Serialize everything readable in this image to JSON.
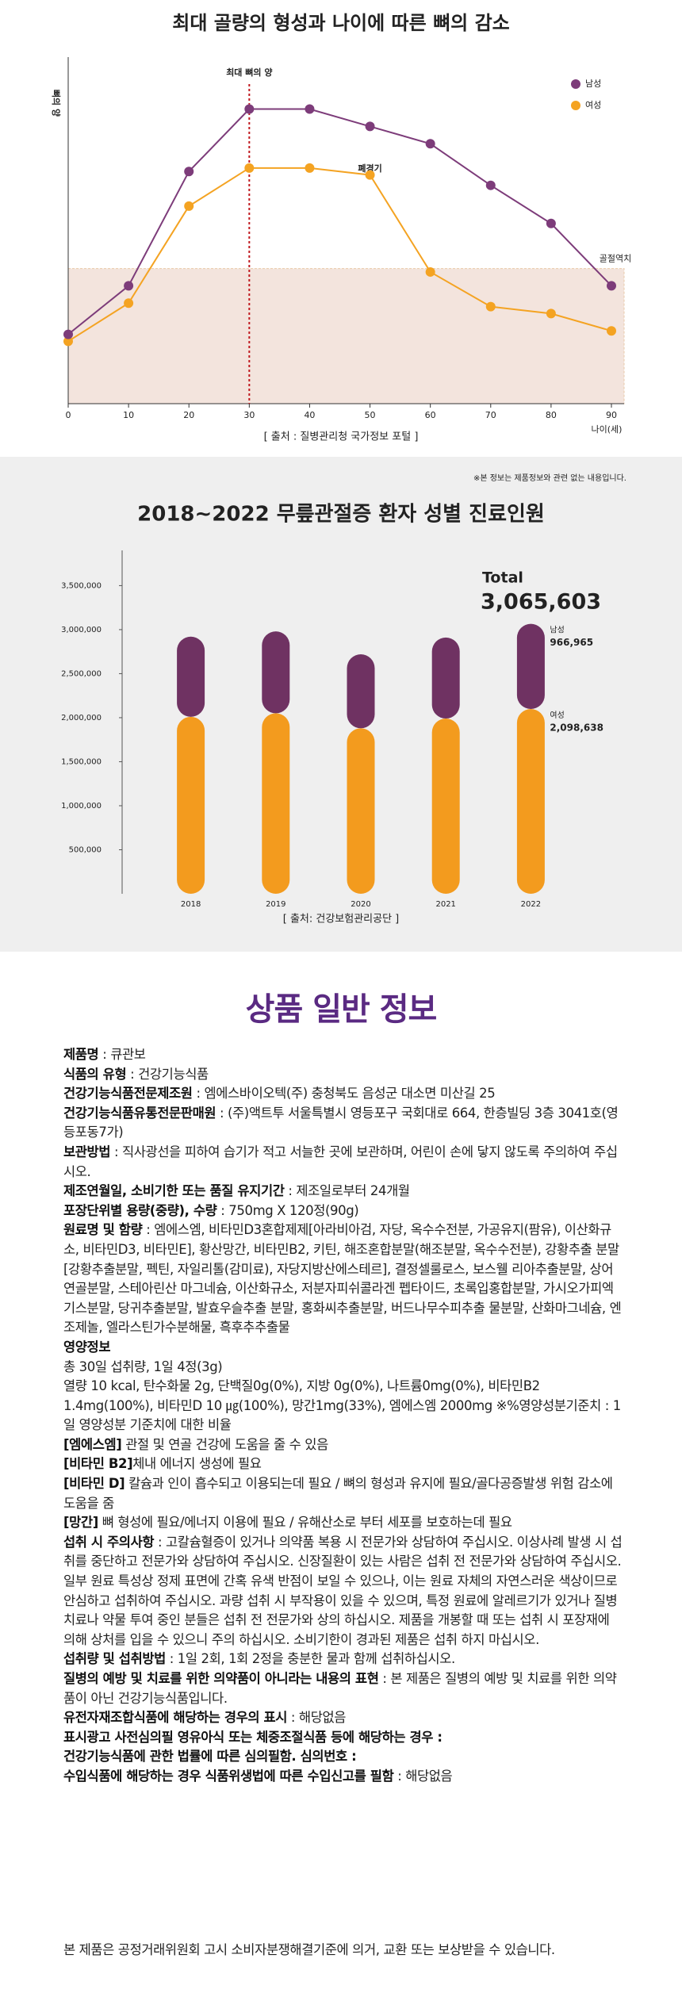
{
  "chart_data": [
    {
      "type": "line",
      "title": "최대 골량의 형성과 나이에 따른 뼈의 감소",
      "x": [
        0,
        10,
        20,
        30,
        40,
        50,
        60,
        70,
        80,
        90
      ],
      "xlim": [
        0,
        90
      ],
      "xticks": [
        0,
        10,
        20,
        30,
        40,
        50,
        60,
        70,
        80,
        90
      ],
      "ylim": [
        0,
        100
      ],
      "ylabel": "뼈의 양",
      "xlabel": "나이(세)",
      "legend": "top-right",
      "series": [
        {
          "name": "여성",
          "color": "#f4a322",
          "values": [
            18,
            29,
            57,
            68,
            68,
            66,
            38,
            28,
            26,
            21
          ]
        },
        {
          "name": "남성",
          "color": "#7d3c7a",
          "values": [
            20,
            34,
            67,
            85,
            85,
            80,
            75,
            63,
            52,
            34
          ]
        }
      ],
      "threshold": {
        "label": "골절역치",
        "value": 39
      },
      "peak_marker": {
        "label": "최대 뼈의 양",
        "x": 30
      },
      "menopause": {
        "label": "폐경기",
        "x": 50
      },
      "source": "[ 출처 : 질병관리청 국가정보 포털 ]"
    },
    {
      "type": "bar",
      "stacked": true,
      "note": "※본 정보는 제품정보와 관련 없는 내용입니다.",
      "title": "2018~2022 무릎관절증 환자 성별 진료인원",
      "categories": [
        "2018",
        "2019",
        "2020",
        "2021",
        "2022"
      ],
      "ylim": [
        0,
        3900000
      ],
      "yticks": [
        {
          "value": 500000,
          "label": "500,000"
        },
        {
          "value": 1000000,
          "label": "1,000,000"
        },
        {
          "value": 1500000,
          "label": "1,500,000"
        },
        {
          "value": 2000000,
          "label": "2,000,000"
        },
        {
          "value": 2500000,
          "label": "2,500,000"
        },
        {
          "value": 3000000,
          "label": "3,000,000"
        },
        {
          "value": 3500000,
          "label": "3,500,000"
        }
      ],
      "series": [
        {
          "name": "여성",
          "color": "#f39b1e",
          "values": [
            2010000,
            2050000,
            1880000,
            1990000,
            2098638
          ],
          "value_labels": [
            null,
            null,
            null,
            null,
            "2,098,638"
          ]
        },
        {
          "name": "남성",
          "color": "#6f3262",
          "values": [
            910000,
            930000,
            840000,
            920000,
            966965
          ],
          "value_labels": [
            null,
            null,
            null,
            null,
            "966,965"
          ]
        }
      ],
      "total_label": "Total",
      "total_value": "3,065,603",
      "source": "[ 출처: 건강보험관리공단 ]"
    }
  ],
  "document": {
    "title": "상품 일반 정보",
    "items": [
      {
        "label": "제품명",
        "text": " : 큐관보"
      },
      {
        "label": "식품의 유형",
        "text": " : 건강기능식품"
      },
      {
        "label": "건강기능식품전문제조원",
        "text": " : 엠에스바이오텍(주) 충청북도 음성군 대소면 미산길 25"
      },
      {
        "label": "건강기능식품유통전문판매원",
        "text": " : (주)액트투 서울특별시 영등포구 국회대로 664, 한층빌딩 3층 3041호(영등포동7가)"
      },
      {
        "label": "보관방법",
        "text": " : 직사광선을 피하여 습기가 적고 서늘한 곳에 보관하며, 어린이 손에 닿지 않도록 주의하여 주십시오."
      },
      {
        "label": "제조연월일, 소비기한 또는 품질 유지기간",
        "text": " : 제조일로부터 24개월"
      },
      {
        "label": "포장단위별 용량(중량), 수량",
        "text": " : 750mg X 120정(90g)"
      },
      {
        "label": "원료명 및 함량",
        "text": " : 엠에스엠, 비타민D3혼합제제[아라비아검, 자당, 옥수수전분, 가공유지(팜유), 이산화규소, 비타민D3, 비타민E], 황산망간, 비타민B2, 키틴, 해조혼합분말(해조분말, 옥수수전분), 강황추출 분말[강황추출분말, 펙틴, 자일리톨(감미료), 자당지방산에스테르], 결정셀룰로스, 보스웰 리아추출분말, 상어연골분말, 스테아린산 마그네슘, 이산화규소, 저분자피쉬콜라겐 펩타이드, 초록입홍합분말, 가시오가피엑 기스분말, 당귀추출분말, 발효우슬추출 분말, 홍화씨추출분말, 버드나무수피추출 물분말, 산화마그네슘, 엔조제놀, 엘라스틴가수분해물, 흑후추추출물"
      },
      {
        "label": "영양정보"
      },
      {
        "text": "총 30일 섭취량, 1일 4정(3g)"
      },
      {
        "text": "열량 10 kcal, 탄수화물 2g, 단백질0g(0%), 지방 0g(0%), 나트륨0mg(0%), 비타민B2 1.4mg(100%), 비타민D 10 ㎍(100%), 망간1mg(33%), 엠에스엠 2000mg ※%영양성분기준치 : 1일 영양성분 기준치에 대한 비율"
      },
      {
        "label": "[엠에스엠]",
        "text": " 관절 및 연골 건강에 도움을 줄 수 있음"
      },
      {
        "label": "[비타민 B2]",
        "text": "체내 에너지 생성에 필요"
      },
      {
        "label": "[비타민 D]",
        "text": " 칼슘과 인이 흡수되고 이용되는데 필요 / 뼈의 형성과 유지에 필요/골다공증발생 위험 감소에 도움을 줌"
      },
      {
        "label": "[망간]",
        "text": " 뼈 형성에 필요/에너지 이용에 필요 / 유해산소로 부터 세포를 보호하는데 필요"
      },
      {
        "label": "섭취 시 주의사항",
        "text": " : 고칼슘혈증이 있거나 의약품 복용 시 전문가와 상담하여 주십시오. 이상사례 발생 시 섭취를 중단하고 전문가와 상담하여 주십시오. 신장질환이 있는 사람은 섭취 전 전문가와 상담하여 주십시오.  일부 원료 특성상 정제 표면에 간혹 유색 반점이 보일 수 있으나, 이는 원료 자체의 자연스러운 색상이므로 안심하고 섭취하여 주십시오. 과량 섭취 시 부작용이 있을 수 있으며, 특정 원료에 알레르기가 있거나 질병 치료나 약물 투여 중인 분들은 섭취 전 전문가와 상의 하십시오. 제품을 개봉할 때 또는 섭취 시 포장재에 의해 상처를 입을 수 있으니 주의 하십시오. 소비기한이 경과된 제품은 섭취 하지 마십시오."
      },
      {
        "label": "섭취량 및 섭취방법",
        "text": " : 1일 2회, 1회 2정을 충분한 물과 함께 섭취하십시오."
      },
      {
        "label": "질병의 예방 및 치료를 위한 의약품이 아니라는 내용의 표현",
        "text": " : 본 제품은 질병의 예방 및 치료를 위한 의약품이 아닌 건강기능식품입니다."
      },
      {
        "label": "유전자재조합식품에 해당하는 경우의 표시",
        "text": " : 해당없음"
      },
      {
        "label": "표시광고 사전심의필 영유아식 또는 체중조절식품 등에 해당하는 경우 :"
      },
      {
        "label": "건강기능식품에 관한 법률에 따른 심의필함. 심의번호 :"
      },
      {
        "label": "수입식품에 해당하는 경우 식품위생법에 따른 수입신고를 필함",
        "text": " : 해당없음"
      }
    ],
    "footer": "본 제품은 공정거래위원회 고시 소비자분쟁해결기준에 의거, 교환 또는 보상받을 수 있습니다."
  }
}
